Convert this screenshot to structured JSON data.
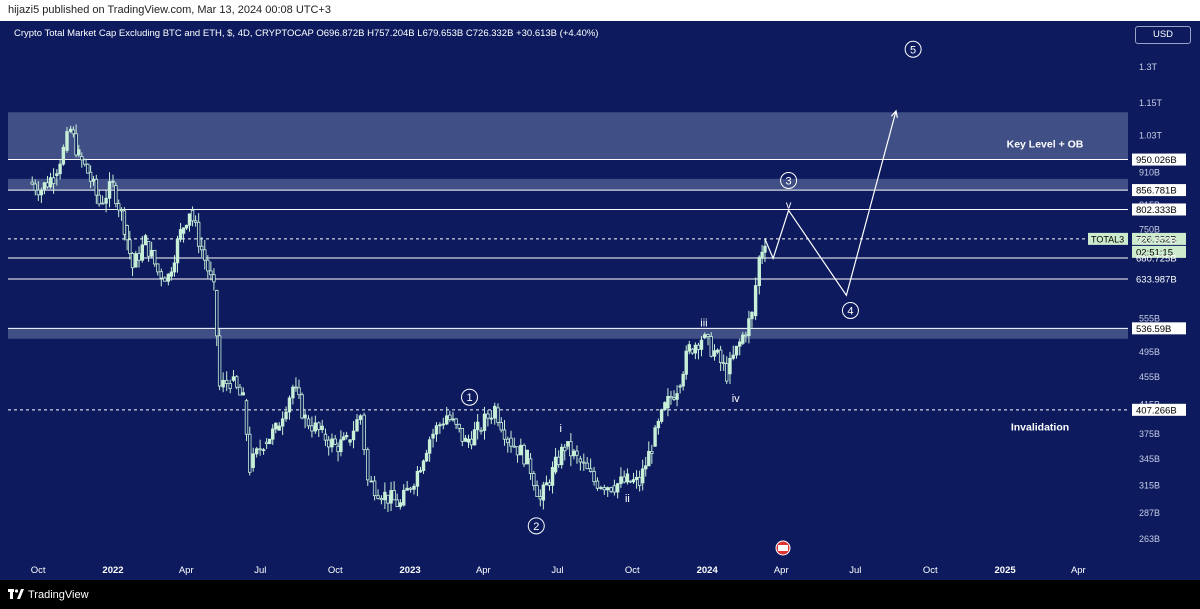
{
  "header": {
    "published": "hijazi5 published on TradingView.com, Mar 13, 2024 00:08 UTC+3"
  },
  "legend": {
    "symbol": "Crypto Total Market Cap Excluding BTC and ETH, $, 4D, CRYPTOCAP",
    "open": "O696.872B",
    "high": "H757.204B",
    "low": "L679.653B",
    "close": "C726.332B",
    "change": "+30.613B (+4.40%)"
  },
  "currency": "USD",
  "footer": {
    "brand": "TradingView"
  },
  "colors": {
    "background": "#0d1b5e",
    "candle": "#c8f0d8",
    "zone": "#6b7aa8",
    "accent_label": "#cdeccd"
  },
  "chart_data": {
    "type": "candlestick",
    "ylabel_ticks": [
      "1.3T",
      "1.15T",
      "1.03T",
      "910B",
      "815B",
      "750B",
      "555B",
      "495B",
      "455B",
      "415B",
      "375B",
      "345B",
      "315B",
      "287B",
      "263B"
    ],
    "x_ticks": [
      "Oct",
      "2022",
      "Apr",
      "Jul",
      "Oct",
      "2023",
      "Apr",
      "Jul",
      "Oct",
      "2024",
      "Apr",
      "Jul",
      "Oct",
      "2025",
      "Apr"
    ],
    "price_labels": [
      {
        "text": "950.026B",
        "value": 950.026,
        "style": "box"
      },
      {
        "text": "856.781B",
        "value": 856.781,
        "style": "box"
      },
      {
        "text": "802.333B",
        "value": 802.333,
        "style": "box"
      },
      {
        "text": "726.332B",
        "value": 726.332,
        "style": "current"
      },
      {
        "text": "02:51:15",
        "value": 726.332,
        "style": "timer"
      },
      {
        "text": "723.872B",
        "value": 723.872,
        "style": "line"
      },
      {
        "text": "680.725B",
        "value": 680.725,
        "style": "line"
      },
      {
        "text": "633.987B",
        "value": 633.987,
        "style": "line"
      },
      {
        "text": "536.59B",
        "value": 536.59,
        "style": "box"
      },
      {
        "text": "407.266B",
        "value": 407.266,
        "style": "box"
      }
    ],
    "symbol_tag": "TOTAL3",
    "horizontal_levels": [
      950.026,
      856.781,
      802.333,
      726.332,
      680.725,
      633.987,
      536.59,
      407.266
    ],
    "zones": [
      {
        "from": 950.026,
        "to": 1115
      },
      {
        "from": 856.781,
        "to": 890
      },
      {
        "from": 518,
        "to": 536.59
      }
    ],
    "annotations": {
      "key_level": "Key Level + OB",
      "invalidation": "Invalidation",
      "waves": [
        "1",
        "2",
        "3",
        "4",
        "5"
      ],
      "subwaves": [
        "i",
        "ii",
        "iii",
        "iv",
        "v"
      ]
    },
    "series": [
      {
        "points": [
          [
            "2021-09-20",
            880
          ],
          [
            "2021-10-05",
            860
          ],
          [
            "2021-10-20",
            900
          ],
          [
            "2021-11-01",
            980
          ],
          [
            "2021-11-10",
            1050
          ],
          [
            "2021-11-20",
            960
          ],
          [
            "2021-12-01",
            910
          ],
          [
            "2021-12-15",
            820
          ],
          [
            "2022-01-01",
            870
          ],
          [
            "2022-01-15",
            760
          ],
          [
            "2022-01-25",
            660
          ],
          [
            "2022-02-10",
            720
          ],
          [
            "2022-02-25",
            650
          ],
          [
            "2022-03-10",
            640
          ],
          [
            "2022-03-25",
            740
          ],
          [
            "2022-04-05",
            800
          ],
          [
            "2022-04-20",
            700
          ],
          [
            "2022-05-05",
            610
          ],
          [
            "2022-05-12",
            440
          ],
          [
            "2022-05-25",
            450
          ],
          [
            "2022-06-10",
            420
          ],
          [
            "2022-06-18",
            335
          ],
          [
            "2022-07-05",
            365
          ],
          [
            "2022-07-20",
            380
          ],
          [
            "2022-08-10",
            440
          ],
          [
            "2022-08-25",
            395
          ],
          [
            "2022-09-15",
            375
          ],
          [
            "2022-10-01",
            360
          ],
          [
            "2022-10-15",
            365
          ],
          [
            "2022-11-01",
            400
          ],
          [
            "2022-11-10",
            320
          ],
          [
            "2022-12-01",
            305
          ],
          [
            "2022-12-20",
            295
          ],
          [
            "2023-01-10",
            330
          ],
          [
            "2023-01-25",
            370
          ],
          [
            "2023-02-15",
            400
          ],
          [
            "2023-03-10",
            365
          ],
          [
            "2023-03-25",
            380
          ],
          [
            "2023-04-15",
            410
          ],
          [
            "2023-05-01",
            370
          ],
          [
            "2023-05-25",
            345
          ],
          [
            "2023-06-10",
            300
          ],
          [
            "2023-06-25",
            330
          ],
          [
            "2023-07-10",
            360
          ],
          [
            "2023-07-25",
            345
          ],
          [
            "2023-08-15",
            320
          ],
          [
            "2023-09-05",
            315
          ],
          [
            "2023-09-25",
            320
          ],
          [
            "2023-10-10",
            318
          ],
          [
            "2023-10-25",
            360
          ],
          [
            "2023-11-10",
            410
          ],
          [
            "2023-11-25",
            440
          ],
          [
            "2023-12-10",
            500
          ],
          [
            "2023-12-25",
            520
          ],
          [
            "2024-01-10",
            495
          ],
          [
            "2024-01-25",
            460
          ],
          [
            "2024-02-10",
            510
          ],
          [
            "2024-02-25",
            560
          ],
          [
            "2024-03-05",
            680
          ],
          [
            "2024-03-12",
            726
          ]
        ]
      }
    ]
  }
}
